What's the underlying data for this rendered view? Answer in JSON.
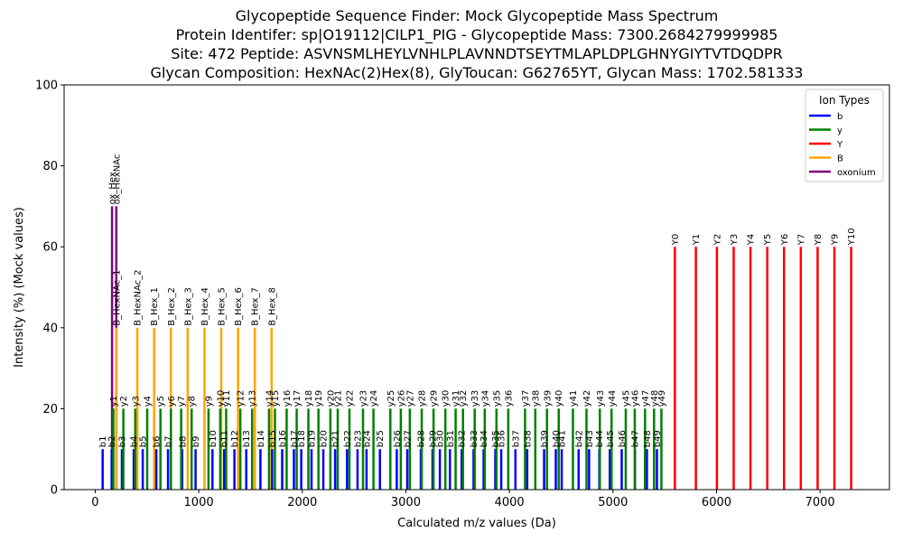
{
  "chart_data": {
    "type": "bar",
    "title_lines": [
      "Glycopeptide Sequence Finder: Mock Glycopeptide Mass Spectrum",
      "Protein Identifer: sp|O19112|CILP1_PIG - Glycopeptide Mass: 7300.2684279999985",
      "Site: 472 Peptide: ASVNSMLHEYLVNHLPLAVNNDTSEYTMLAPLDPLGHNYGIYTVTDQDPR",
      "Glycan Composition: HexNAc(2)Hex(8), GlyToucan: G62765YT, Glycan Mass: 1702.581333"
    ],
    "xlabel": "Calculated m/z values (Da)",
    "ylabel": "Intensity (%) (Mock values)",
    "xlim": [
      -300,
      7670
    ],
    "ylim": [
      0,
      100
    ],
    "xticks": [
      0,
      1000,
      2000,
      3000,
      4000,
      5000,
      6000,
      7000
    ],
    "yticks": [
      0,
      20,
      40,
      60,
      80,
      100
    ],
    "legend": {
      "title": "Ion Types",
      "position": "top-right",
      "entries": [
        {
          "name": "b",
          "color": "#0000ff"
        },
        {
          "name": "y",
          "color": "#008000"
        },
        {
          "name": "Y",
          "color": "#ff0000"
        },
        {
          "name": "B",
          "color": "#ffa500"
        },
        {
          "name": "oxonium",
          "color": "#800080"
        }
      ]
    },
    "colors": {
      "b": "#0000ff",
      "y": "#008000",
      "Y": "#ff0000",
      "B": "#ffa500",
      "oxonium": "#800080"
    },
    "series": [
      {
        "name": "oxonium",
        "peaks": [
          {
            "label": "ox_Hex",
            "x": 163.06,
            "y": 70
          },
          {
            "label": "ox_HexNAc",
            "x": 204.09,
            "y": 70
          }
        ]
      },
      {
        "name": "B",
        "peaks": [
          {
            "label": "B_HexNAc_1",
            "x": 204.09,
            "y": 40
          },
          {
            "label": "B_HexNAc_2",
            "x": 407.17,
            "y": 40
          },
          {
            "label": "B_Hex_1",
            "x": 569.22,
            "y": 40
          },
          {
            "label": "B_Hex_2",
            "x": 731.27,
            "y": 40
          },
          {
            "label": "B_Hex_3",
            "x": 893.33,
            "y": 40
          },
          {
            "label": "B_Hex_4",
            "x": 1055.38,
            "y": 40
          },
          {
            "label": "B_Hex_5",
            "x": 1217.43,
            "y": 40
          },
          {
            "label": "B_Hex_6",
            "x": 1379.48,
            "y": 40
          },
          {
            "label": "B_Hex_7",
            "x": 1541.54,
            "y": 40
          },
          {
            "label": "B_Hex_8",
            "x": 1703.59,
            "y": 40
          }
        ]
      },
      {
        "name": "Y",
        "peaks": [
          {
            "label": "Y0",
            "x": 5597.69,
            "y": 60
          },
          {
            "label": "Y1",
            "x": 5800.77,
            "y": 60
          },
          {
            "label": "Y2",
            "x": 6003.85,
            "y": 60
          },
          {
            "label": "Y3",
            "x": 6165.9,
            "y": 60
          },
          {
            "label": "Y4",
            "x": 6327.96,
            "y": 60
          },
          {
            "label": "Y5",
            "x": 6490.01,
            "y": 60
          },
          {
            "label": "Y6",
            "x": 6652.06,
            "y": 60
          },
          {
            "label": "Y7",
            "x": 6814.12,
            "y": 60
          },
          {
            "label": "Y8",
            "x": 6976.17,
            "y": 60
          },
          {
            "label": "Y9",
            "x": 7138.22,
            "y": 60
          },
          {
            "label": "Y10",
            "x": 7300.27,
            "y": 60
          }
        ]
      },
      {
        "name": "b",
        "peaks": [
          {
            "label": "b1",
            "x": 72.04,
            "y": 10
          },
          {
            "label": "b2",
            "x": 159.08,
            "y": 10
          },
          {
            "label": "b3",
            "x": 258.14,
            "y": 10
          },
          {
            "label": "b4",
            "x": 372.19,
            "y": 10
          },
          {
            "label": "b5",
            "x": 459.22,
            "y": 10
          },
          {
            "label": "b6",
            "x": 590.26,
            "y": 10
          },
          {
            "label": "b7",
            "x": 703.34,
            "y": 10
          },
          {
            "label": "b8",
            "x": 840.4,
            "y": 10
          },
          {
            "label": "b9",
            "x": 969.45,
            "y": 10
          },
          {
            "label": "b10",
            "x": 1132.51,
            "y": 10
          },
          {
            "label": "b11",
            "x": 1245.59,
            "y": 10
          },
          {
            "label": "b12",
            "x": 1344.66,
            "y": 10
          },
          {
            "label": "b13",
            "x": 1458.7,
            "y": 10
          },
          {
            "label": "b14",
            "x": 1595.76,
            "y": 10
          },
          {
            "label": "b15",
            "x": 1708.84,
            "y": 10
          },
          {
            "label": "b16",
            "x": 1805.89,
            "y": 10
          },
          {
            "label": "b17",
            "x": 1918.98,
            "y": 10
          },
          {
            "label": "b18",
            "x": 1990.01,
            "y": 10
          },
          {
            "label": "b19",
            "x": 2089.08,
            "y": 10
          },
          {
            "label": "b20",
            "x": 2203.12,
            "y": 10
          },
          {
            "label": "b21",
            "x": 2317.17,
            "y": 10
          },
          {
            "label": "b22",
            "x": 2432.19,
            "y": 10
          },
          {
            "label": "b23",
            "x": 2533.24,
            "y": 10
          },
          {
            "label": "b24",
            "x": 2620.27,
            "y": 10
          },
          {
            "label": "b25",
            "x": 2749.32,
            "y": 10
          },
          {
            "label": "b26",
            "x": 2912.38,
            "y": 10
          },
          {
            "label": "b27",
            "x": 3013.43,
            "y": 10
          },
          {
            "label": "b28",
            "x": 3144.47,
            "y": 10
          },
          {
            "label": "b29",
            "x": 3257.55,
            "y": 10
          },
          {
            "label": "b30",
            "x": 3328.59,
            "y": 10
          },
          {
            "label": "b31",
            "x": 3425.64,
            "y": 10
          },
          {
            "label": "b32",
            "x": 3538.72,
            "y": 10
          },
          {
            "label": "b33",
            "x": 3653.75,
            "y": 10
          },
          {
            "label": "b34",
            "x": 3750.8,
            "y": 10
          },
          {
            "label": "b35",
            "x": 3863.89,
            "y": 10
          },
          {
            "label": "b36",
            "x": 3920.91,
            "y": 10
          },
          {
            "label": "b37",
            "x": 4057.97,
            "y": 10
          },
          {
            "label": "b38",
            "x": 4172.01,
            "y": 10
          },
          {
            "label": "b39",
            "x": 4335.07,
            "y": 10
          },
          {
            "label": "b40",
            "x": 4448.16,
            "y": 10
          },
          {
            "label": "b41",
            "x": 4505.18,
            "y": 10
          },
          {
            "label": "b42",
            "x": 4668.24,
            "y": 10
          },
          {
            "label": "b43",
            "x": 4769.29,
            "y": 10
          },
          {
            "label": "b44",
            "x": 4868.36,
            "y": 10
          },
          {
            "label": "b45",
            "x": 4969.41,
            "y": 10
          },
          {
            "label": "b46",
            "x": 5084.43,
            "y": 10
          },
          {
            "label": "b47",
            "x": 5212.49,
            "y": 10
          },
          {
            "label": "b48",
            "x": 5327.52,
            "y": 10
          },
          {
            "label": "b49",
            "x": 5424.57,
            "y": 10
          }
        ]
      },
      {
        "name": "y",
        "peaks": [
          {
            "label": "y1",
            "x": 175.12,
            "y": 20
          },
          {
            "label": "y2",
            "x": 272.17,
            "y": 20
          },
          {
            "label": "y3",
            "x": 387.2,
            "y": 20
          },
          {
            "label": "y4",
            "x": 502.22,
            "y": 20
          },
          {
            "label": "y5",
            "x": 630.28,
            "y": 20
          },
          {
            "label": "y6",
            "x": 731.33,
            "y": 20
          },
          {
            "label": "y7",
            "x": 830.4,
            "y": 20
          },
          {
            "label": "y8",
            "x": 931.45,
            "y": 20
          },
          {
            "label": "y9",
            "x": 1094.51,
            "y": 20
          },
          {
            "label": "y10",
            "x": 1207.59,
            "y": 20
          },
          {
            "label": "y11",
            "x": 1264.62,
            "y": 20
          },
          {
            "label": "y12",
            "x": 1401.67,
            "y": 20
          },
          {
            "label": "y13",
            "x": 1515.72,
            "y": 20
          },
          {
            "label": "y14",
            "x": 1678.78,
            "y": 20
          },
          {
            "label": "y15",
            "x": 1735.8,
            "y": 20
          },
          {
            "label": "y16",
            "x": 1848.89,
            "y": 20
          },
          {
            "label": "y17",
            "x": 1945.94,
            "y": 20
          },
          {
            "label": "y18",
            "x": 2059.02,
            "y": 20
          },
          {
            "label": "y19",
            "x": 2156.08,
            "y": 20
          },
          {
            "label": "y20",
            "x": 2271.1,
            "y": 20
          },
          {
            "label": "y21",
            "x": 2342.14,
            "y": 20
          },
          {
            "label": "y22",
            "x": 2455.22,
            "y": 20
          },
          {
            "label": "y23",
            "x": 2586.27,
            "y": 20
          },
          {
            "label": "y24",
            "x": 2687.31,
            "y": 20
          },
          {
            "label": "y25",
            "x": 2850.38,
            "y": 20
          },
          {
            "label": "y26",
            "x": 2951.42,
            "y": 20
          },
          {
            "label": "y27",
            "x": 3038.46,
            "y": 20
          },
          {
            "label": "y28",
            "x": 3153.48,
            "y": 20
          },
          {
            "label": "y29",
            "x": 3267.53,
            "y": 20
          },
          {
            "label": "y30",
            "x": 3381.57,
            "y": 20
          },
          {
            "label": "y31",
            "x": 3480.64,
            "y": 20
          },
          {
            "label": "y32",
            "x": 3551.67,
            "y": 20
          },
          {
            "label": "y33",
            "x": 3664.76,
            "y": 20
          },
          {
            "label": "y34",
            "x": 3761.81,
            "y": 20
          },
          {
            "label": "y35",
            "x": 3874.89,
            "y": 20
          },
          {
            "label": "y36",
            "x": 3988.94,
            "y": 20
          },
          {
            "label": "y37",
            "x": 4151.0,
            "y": 20
          },
          {
            "label": "y38",
            "x": 4250.07,
            "y": 20
          },
          {
            "label": "y39",
            "x": 4363.15,
            "y": 20
          },
          {
            "label": "y40",
            "x": 4476.24,
            "y": 20
          },
          {
            "label": "y41",
            "x": 4613.3,
            "y": 20
          },
          {
            "label": "y42",
            "x": 4744.34,
            "y": 20
          },
          {
            "label": "y43",
            "x": 4873.38,
            "y": 20
          },
          {
            "label": "y44",
            "x": 4986.46,
            "y": 20
          },
          {
            "label": "y45",
            "x": 5123.52,
            "y": 20
          },
          {
            "label": "y46",
            "x": 5210.56,
            "y": 20
          },
          {
            "label": "y47",
            "x": 5309.62,
            "y": 20
          },
          {
            "label": "y48",
            "x": 5396.66,
            "y": 20
          },
          {
            "label": "y49",
            "x": 5467.69,
            "y": 20
          }
        ]
      }
    ]
  }
}
